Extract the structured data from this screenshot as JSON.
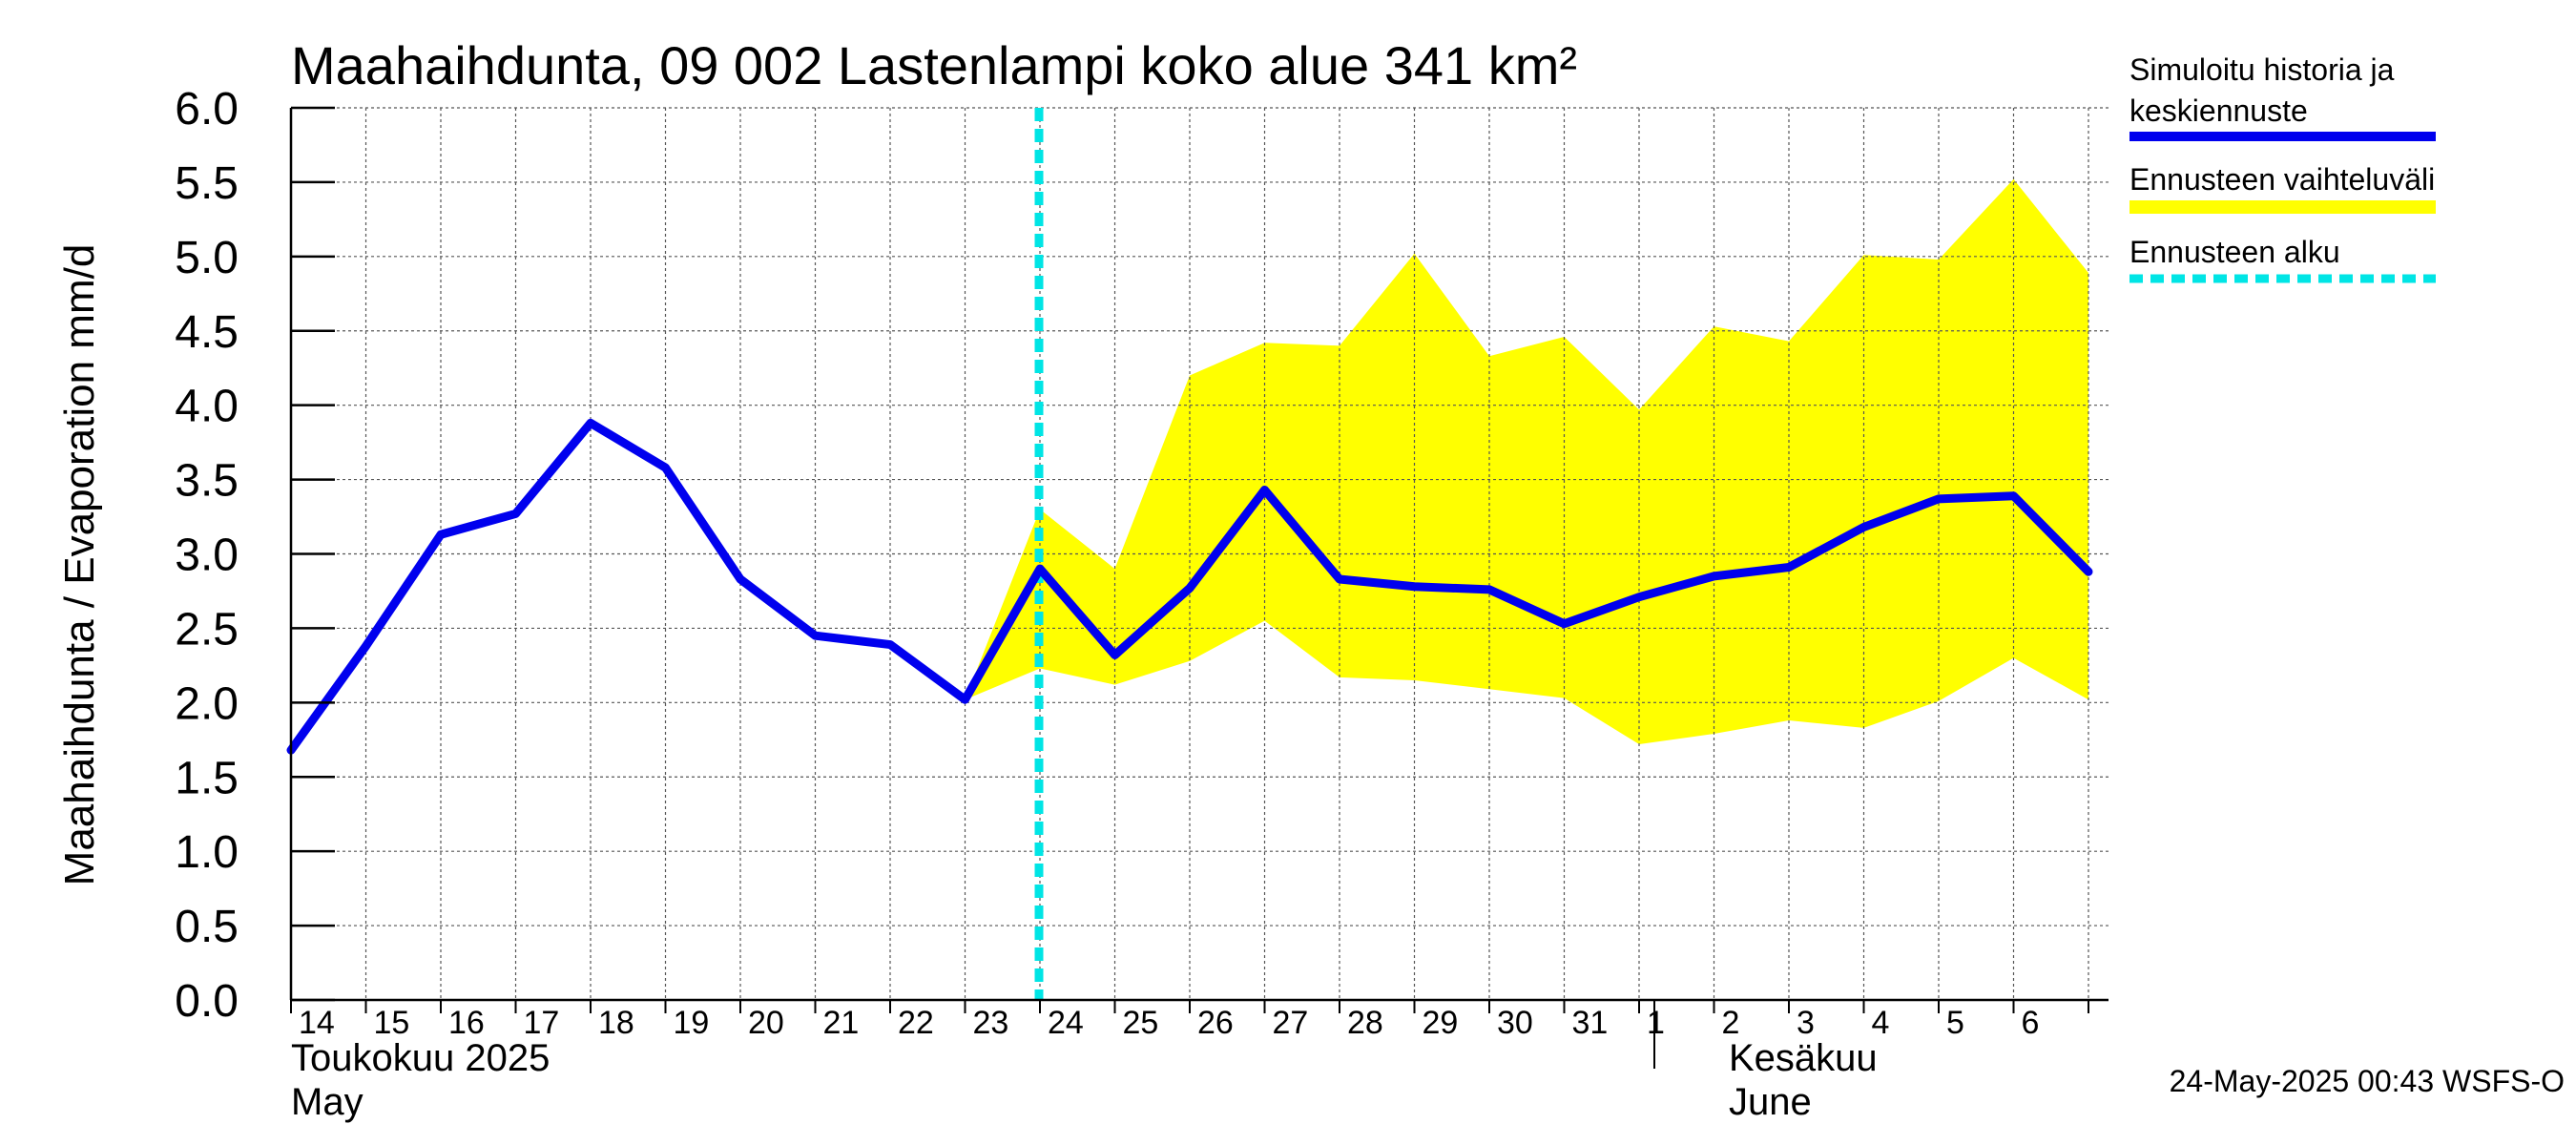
{
  "chart_data": {
    "type": "line",
    "title": "Maahaihdunta, 09 002 Lastenlampi koko alue 341 km²",
    "ylabel": "Maahaihdunta / Evaporation   mm/d",
    "ylim": [
      0.0,
      6.0
    ],
    "yticks": [
      "0.0",
      "0.5",
      "1.0",
      "1.5",
      "2.0",
      "2.5",
      "3.0",
      "3.5",
      "4.0",
      "4.5",
      "5.0",
      "5.5",
      "6.0"
    ],
    "x_tick_labels": [
      "14",
      "15",
      "16",
      "17",
      "18",
      "19",
      "20",
      "21",
      "22",
      "23",
      "24",
      "25",
      "26",
      "27",
      "28",
      "29",
      "30",
      "31",
      "1",
      "2",
      "3",
      "4",
      "5",
      "6"
    ],
    "month_labels": {
      "may_fi": "Toukokuu  2025",
      "may_en": "May",
      "june_fi": "Kesäkuu",
      "june_en": "June"
    },
    "grid": true,
    "forecast_start_index": 10,
    "series": [
      {
        "name": "Simuloitu historia ja keskiennuste",
        "color": "#0000ee",
        "values": [
          1.68,
          2.38,
          3.13,
          3.27,
          3.88,
          3.58,
          2.83,
          2.45,
          2.39,
          2.02,
          2.9,
          2.32,
          2.77,
          3.43,
          2.83,
          2.78,
          2.76,
          2.53,
          2.71,
          2.85,
          2.91,
          3.18,
          3.37,
          3.39,
          2.88
        ]
      },
      {
        "name": "Ennusteen vaihteluväli",
        "color": "#ffff00",
        "start_index": 9,
        "upper": [
          2.02,
          3.3,
          2.9,
          4.2,
          4.42,
          4.4,
          5.02,
          4.33,
          4.46,
          3.97,
          4.53,
          4.43,
          5.01,
          4.98,
          5.52,
          4.89
        ],
        "lower": [
          2.02,
          2.23,
          2.12,
          2.28,
          2.55,
          2.17,
          2.15,
          2.09,
          2.03,
          1.72,
          1.79,
          1.88,
          1.83,
          2.01,
          2.3,
          2.02
        ]
      }
    ],
    "legend": {
      "position": "right",
      "items": [
        {
          "label_line1": "Simuloitu historia ja",
          "label_line2": "keskiennuste",
          "color": "#0000ee",
          "style": "solid"
        },
        {
          "label_line1": "Ennusteen vaihteluväli",
          "label_line2": "",
          "color": "#ffff00",
          "style": "solid"
        },
        {
          "label_line1": "Ennusteen alku",
          "label_line2": "",
          "color": "#00e5e5",
          "style": "dashed"
        }
      ]
    }
  },
  "footer": "24-May-2025 00:43 WSFS-O"
}
